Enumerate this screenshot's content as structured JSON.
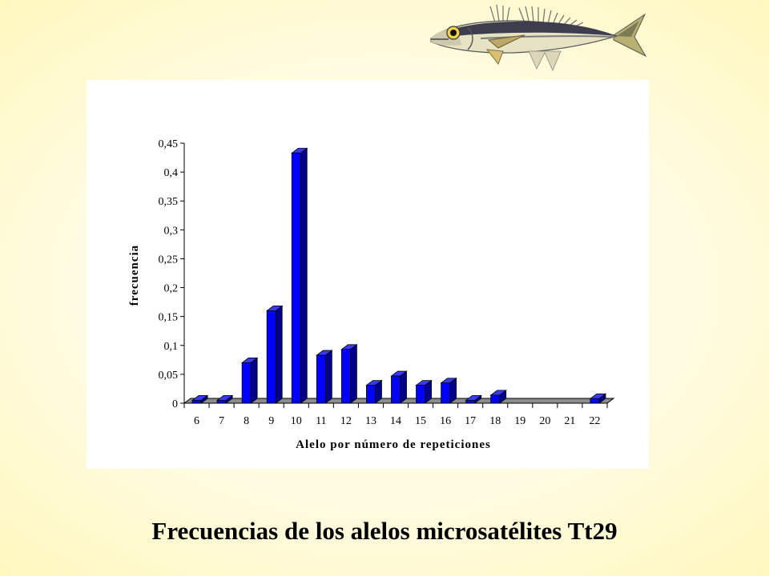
{
  "slide": {
    "title": "Frecuencias de los alelos microsatélites Tt29"
  },
  "illustration": {
    "icon": "fish-illustration"
  },
  "colors": {
    "bar_front": "#0000ff",
    "bar_side": "#00008a",
    "bar_top": "#3a3aff",
    "floor": "#8c8c8c"
  },
  "chart_data": {
    "type": "bar",
    "xlabel": "Alelo por número de repeticiones",
    "ylabel": "frecuencia",
    "ylim": [
      0,
      0.45
    ],
    "yticks": [
      0,
      0.05,
      0.1,
      0.15,
      0.2,
      0.25,
      0.3,
      0.35,
      0.4,
      0.45
    ],
    "ytick_labels": [
      "0",
      "0,05",
      "0,1",
      "0,15",
      "0,2",
      "0,25",
      "0,3",
      "0,35",
      "0,4",
      "0,45"
    ],
    "categories": [
      "6",
      "7",
      "8",
      "9",
      "10",
      "11",
      "12",
      "13",
      "14",
      "15",
      "16",
      "17",
      "18",
      "19",
      "20",
      "21",
      "22"
    ],
    "values": [
      0.005,
      0.005,
      0.07,
      0.16,
      0.433,
      0.083,
      0.093,
      0.031,
      0.047,
      0.031,
      0.035,
      0.005,
      0.014,
      0,
      0,
      0,
      0.008
    ],
    "grid": false,
    "legend": "none",
    "style": "3d"
  }
}
